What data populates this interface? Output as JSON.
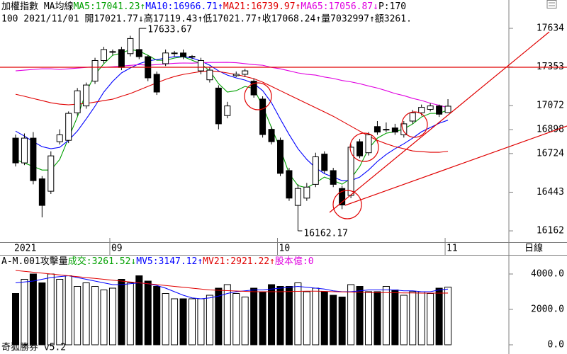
{
  "chart_data": [
    {
      "type": "candlestick",
      "title": "加權指數 MA均線",
      "subtitle": "100 2021/11/01 開17021.77↓高17119.43↑低17021.77↑收17068.24↑量7032997↑額3261.",
      "legend_extra": "P:170",
      "xlabel": "日線",
      "up_color": "#ffffff",
      "down_color": "#000000",
      "categories": [
        "2021",
        null,
        null,
        null,
        null,
        null,
        null,
        null,
        null,
        null,
        null,
        "09",
        null,
        null,
        null,
        null,
        null,
        null,
        null,
        null,
        null,
        null,
        null,
        null,
        null,
        null,
        null,
        null,
        null,
        null,
        "10",
        null,
        null,
        null,
        null,
        null,
        null,
        null,
        null,
        null,
        null,
        null,
        null,
        null,
        null,
        null,
        null,
        null,
        null,
        "11"
      ],
      "open": [
        16836,
        16656,
        16836,
        16540,
        16450,
        16810,
        16820,
        17020,
        17070,
        17250,
        17400,
        17460,
        17480,
        17450,
        17480,
        17428,
        17300,
        17377,
        17450,
        17455,
        17425,
        17325,
        17260,
        17200,
        17000,
        17290,
        17300,
        17250,
        17120,
        16900,
        16820,
        16600,
        16347,
        16400,
        16500,
        16720,
        16600,
        16470,
        16420,
        16810,
        16730,
        16920,
        16895,
        16910,
        16860,
        16960,
        17020,
        17045,
        17070,
        17021.77
      ],
      "high": [
        16862,
        16870,
        16880,
        16560,
        16740,
        16900,
        17030,
        17200,
        17240,
        17420,
        17500,
        17480,
        17500,
        17580,
        17633.67,
        17440,
        17320,
        17480,
        17470,
        17480,
        17440,
        17420,
        17350,
        17220,
        17100,
        17320,
        17340,
        17270,
        17140,
        16920,
        16840,
        16620,
        16500,
        16510,
        16730,
        16740,
        16620,
        16490,
        16790,
        16830,
        16880,
        16960,
        16950,
        16940,
        16960,
        17040,
        17080,
        17090,
        17080,
        17119.43
      ],
      "low": [
        16630,
        16640,
        16500,
        16260,
        16430,
        16790,
        16800,
        17000,
        17050,
        17230,
        17380,
        17440,
        17330,
        17430,
        17410,
        17250,
        17150,
        17360,
        17430,
        17410,
        17410,
        17300,
        17240,
        16900,
        16980,
        17280,
        17280,
        17130,
        16840,
        16790,
        16560,
        16380,
        16162.17,
        16380,
        16480,
        16580,
        16480,
        16320,
        16400,
        16690,
        16710,
        16860,
        16880,
        16860,
        16840,
        16940,
        17000,
        17030,
        16990,
        17021.77
      ],
      "close": [
        16656,
        16836,
        16527,
        16347,
        16707,
        16860,
        17016,
        17180,
        17222,
        17400,
        17480,
        17465,
        17350,
        17560,
        17428,
        17274,
        17171,
        17455,
        17455,
        17428,
        17430,
        17400,
        17330,
        16940,
        17070,
        17300,
        17325,
        17150,
        16862,
        16810,
        16580,
        16400,
        16470,
        16480,
        16700,
        16600,
        16500,
        16350,
        16770,
        16707,
        16860,
        16880,
        16900,
        16880,
        16940,
        17020,
        17060,
        17070,
        17010,
        17068.24
      ],
      "series": [
        {
          "name": "MA5:17041.23↑",
          "color": "#00a000",
          "values": [
            16681,
            16655,
            16630,
            16604,
            16604,
            16681,
            16836,
            16990,
            17171,
            17299,
            17377,
            17438,
            17454,
            17480,
            17469,
            17438,
            17402,
            17402,
            17418,
            17428,
            17402,
            17377,
            17325,
            17232,
            17171,
            17181,
            17212,
            17196,
            17068,
            16913,
            16759,
            16578,
            16491,
            16475,
            16511,
            16553,
            16527,
            16501,
            16542,
            16630,
            16759,
            16836,
            16872,
            16882,
            16903,
            16939,
            16990,
            17016,
            17016,
            17041.23
          ]
        },
        {
          "name": "MA10:16966.71↑",
          "color": "#0000ff",
          "values": [
            16887,
            16851,
            16810,
            16774,
            16759,
            16769,
            16820,
            16887,
            16975,
            17068,
            17171,
            17248,
            17310,
            17346,
            17377,
            17397,
            17407,
            17418,
            17428,
            17428,
            17418,
            17397,
            17366,
            17325,
            17294,
            17274,
            17258,
            17232,
            17181,
            17093,
            16975,
            16862,
            16759,
            16681,
            16620,
            16578,
            16553,
            16527,
            16527,
            16553,
            16604,
            16666,
            16717,
            16759,
            16795,
            16836,
            16882,
            16913,
            16944,
            16966.71
          ]
        },
        {
          "name": "MA21:16739.97↑",
          "color": "#e00000",
          "values": [
            17155,
            17140,
            17124,
            17109,
            17093,
            17083,
            17078,
            17083,
            17088,
            17098,
            17109,
            17119,
            17140,
            17160,
            17186,
            17212,
            17238,
            17263,
            17284,
            17299,
            17310,
            17320,
            17325,
            17320,
            17310,
            17299,
            17284,
            17268,
            17243,
            17212,
            17181,
            17150,
            17119,
            17088,
            17057,
            17026,
            16995,
            16959,
            16923,
            16887,
            16851,
            16820,
            16795,
            16774,
            16759,
            16743,
            16738,
            16733,
            16733,
            16739.97
          ]
        },
        {
          "name": "MA65:17056.87↓",
          "color": "#e000e0",
          "values": [
            17325,
            17330,
            17335,
            17340,
            17340,
            17335,
            17340,
            17345,
            17350,
            17355,
            17350,
            17355,
            17360,
            17365,
            17370,
            17366,
            17370,
            17375,
            17380,
            17382,
            17381,
            17384,
            17386,
            17386,
            17387,
            17384,
            17377,
            17370,
            17366,
            17350,
            17340,
            17325,
            17310,
            17300,
            17294,
            17280,
            17270,
            17255,
            17245,
            17232,
            17215,
            17200,
            17181,
            17160,
            17145,
            17125,
            17110,
            17090,
            17075,
            17056.87
          ]
        }
      ],
      "ylim": [
        16080,
        17840
      ],
      "yticks": [
        17634,
        17353,
        17072,
        16898,
        16724,
        16443,
        16162
      ]
    },
    {
      "type": "bar",
      "title": "A-M.001攻擊量",
      "legend_extra": "股本億:0",
      "footer": "奇狐勝券 v5.2",
      "series": [
        {
          "name": "成交:3261.52↓",
          "color": "#00a000",
          "values": [
            2900,
            3700,
            4000,
            3500,
            4000,
            3700,
            3900,
            3300,
            3500,
            3300,
            3100,
            3200,
            3700,
            3500,
            3900,
            3600,
            3300,
            2900,
            2600,
            2600,
            2600,
            2600,
            2800,
            3200,
            3400,
            2900,
            2700,
            3200,
            3000,
            3400,
            3300,
            3300,
            3500,
            3000,
            3200,
            3000,
            2800,
            2700,
            3400,
            3300,
            3000,
            3000,
            3300,
            3100,
            2800,
            3000,
            3000,
            2900,
            3200,
            3261.52
          ]
        },
        {
          "name": "MV5:3147.12↑",
          "type": "line",
          "color": "#0000ff",
          "values": [
            3500,
            3550,
            3600,
            3700,
            3800,
            3850,
            3900,
            3800,
            3700,
            3600,
            3500,
            3400,
            3400,
            3450,
            3500,
            3450,
            3350,
            3200,
            3000,
            2800,
            2650,
            2600,
            2650,
            2750,
            2900,
            3000,
            3050,
            3100,
            3100,
            3150,
            3200,
            3250,
            3300,
            3250,
            3200,
            3150,
            3050,
            3000,
            3000,
            3050,
            3100,
            3100,
            3100,
            3100,
            3050,
            3050,
            3000,
            3000,
            3100,
            3147.12
          ]
        },
        {
          "name": "MV21:2921.22↑",
          "type": "line",
          "color": "#e00000",
          "values": [
            4200,
            4150,
            4100,
            4050,
            4000,
            3950,
            3900,
            3850,
            3800,
            3750,
            3700,
            3650,
            3600,
            3550,
            3500,
            3450,
            3400,
            3350,
            3300,
            3250,
            3200,
            3150,
            3100,
            3080,
            3060,
            3040,
            3020,
            3000,
            3000,
            3000,
            3000,
            3010,
            3020,
            3030,
            3030,
            3020,
            3000,
            2990,
            2980,
            2970,
            2960,
            2950,
            2950,
            2940,
            2930,
            2930,
            2920,
            2920,
            2920,
            2921.22
          ]
        }
      ],
      "ylim": [
        0,
        5000
      ],
      "yticks": [
        {
          "value": 0,
          "label": "0.0"
        },
        {
          "value": 2000,
          "label": "2000.0"
        },
        {
          "value": 4000,
          "label": "4000.0"
        }
      ]
    }
  ]
}
